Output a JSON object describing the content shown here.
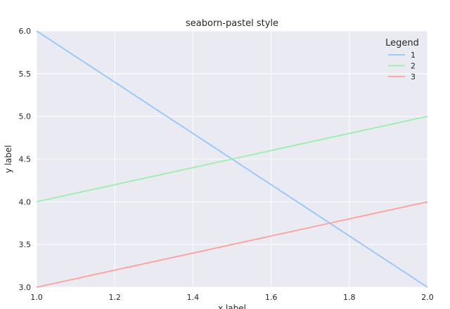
{
  "chart_data": {
    "type": "line",
    "title": "seaborn-pastel style",
    "xlabel": "x label",
    "ylabel": "y label",
    "xlim": [
      1.0,
      2.0
    ],
    "ylim": [
      3.0,
      6.0
    ],
    "xticks": [
      "1.0",
      "1.2",
      "1.4",
      "1.6",
      "1.8",
      "2.0"
    ],
    "yticks": [
      "3.0",
      "3.5",
      "4.0",
      "4.5",
      "5.0",
      "5.5",
      "6.0"
    ],
    "grid": true,
    "background": "#EAEAF2",
    "legend": {
      "title": "Legend",
      "placement": "top-right"
    },
    "x": [
      1,
      2
    ],
    "series": [
      {
        "name": "1",
        "values": [
          6,
          3
        ],
        "color": "#92C6FF"
      },
      {
        "name": "2",
        "values": [
          4,
          5
        ],
        "color": "#97F0AA"
      },
      {
        "name": "3",
        "values": [
          3,
          4
        ],
        "color": "#FF9F9A"
      }
    ]
  }
}
